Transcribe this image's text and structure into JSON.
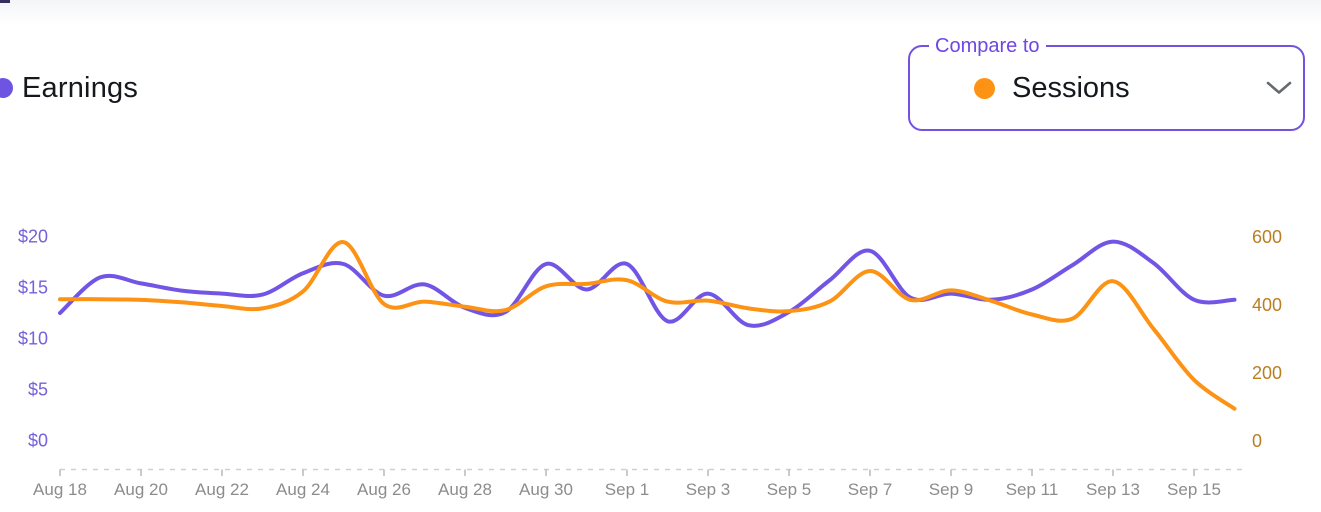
{
  "header": {
    "series_label": "Earnings",
    "compare_label": "Compare to",
    "compare_selected": "Sessions"
  },
  "colors": {
    "earnings": "#7355e6",
    "sessions": "#fc9314",
    "earnings_dot": "#6f54e2",
    "left_axis_text": "#7661dc",
    "right_axis_text": "#b87e22",
    "x_axis_text": "#8c8c8c",
    "axis_line": "#d0d0d0",
    "tick_mark": "#bdbdbd",
    "compare_border": "#7452e0",
    "compare_label_text": "#6e46e2",
    "chevron": "#666b70"
  },
  "chart_data": {
    "type": "line",
    "x": [
      "Aug 18",
      "Aug 19",
      "Aug 20",
      "Aug 21",
      "Aug 22",
      "Aug 23",
      "Aug 24",
      "Aug 25",
      "Aug 26",
      "Aug 27",
      "Aug 28",
      "Aug 29",
      "Aug 30",
      "Aug 31",
      "Sep 1",
      "Sep 2",
      "Sep 3",
      "Sep 4",
      "Sep 5",
      "Sep 6",
      "Sep 7",
      "Sep 8",
      "Sep 9",
      "Sep 10",
      "Sep 11",
      "Sep 12",
      "Sep 13",
      "Sep 14",
      "Sep 15",
      "Sep 16"
    ],
    "x_tick_labels": [
      "Aug 18",
      "Aug 20",
      "Aug 22",
      "Aug 24",
      "Aug 26",
      "Aug 28",
      "Aug 30",
      "Sep 1",
      "Sep 3",
      "Sep 5",
      "Sep 7",
      "Sep 9",
      "Sep 11",
      "Sep 13",
      "Sep 15"
    ],
    "series": [
      {
        "name": "Earnings",
        "axis": "left",
        "color": "#7355e6",
        "values": [
          12.5,
          16.0,
          15.4,
          14.7,
          14.4,
          14.3,
          16.4,
          17.3,
          14.2,
          15.3,
          13.0,
          12.6,
          17.3,
          14.8,
          17.3,
          11.7,
          14.4,
          11.3,
          12.6,
          15.7,
          18.6,
          14.0,
          14.4,
          13.8,
          14.8,
          17.2,
          19.5,
          17.4,
          13.8,
          13.8
        ]
      },
      {
        "name": "Sessions",
        "axis": "right",
        "color": "#fc9314",
        "values": [
          417,
          417,
          415,
          408,
          397,
          390,
          440,
          585,
          403,
          410,
          395,
          385,
          455,
          462,
          473,
          410,
          413,
          390,
          382,
          410,
          500,
          415,
          443,
          412,
          372,
          360,
          470,
          330,
          180,
          95
        ]
      }
    ],
    "left_axis": {
      "tick_labels": [
        "$0",
        "$5",
        "$10",
        "$15",
        "$20"
      ],
      "tick_values": [
        0,
        5,
        10,
        15,
        20
      ],
      "range": [
        0,
        20
      ]
    },
    "right_axis": {
      "tick_labels": [
        "0",
        "200",
        "400",
        "600"
      ],
      "tick_values": [
        0,
        200,
        400,
        600
      ],
      "range": [
        0,
        600
      ]
    },
    "grid": false,
    "legend_position": "top-left",
    "x_axis_style": "dashed"
  }
}
